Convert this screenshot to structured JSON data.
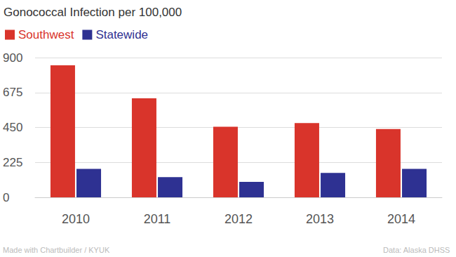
{
  "chart_data": {
    "type": "bar",
    "title": "Gonococcal Infection per 100,000",
    "categories": [
      "2010",
      "2011",
      "2012",
      "2013",
      "2014"
    ],
    "series": [
      {
        "name": "Southwest",
        "color": "#d9342b",
        "values": [
          850,
          638,
          455,
          478,
          440
        ]
      },
      {
        "name": "Statewide",
        "color": "#2e3192",
        "values": [
          183,
          130,
          100,
          157,
          183
        ]
      }
    ],
    "ylim": [
      0,
      900
    ],
    "yticks": [
      0,
      225,
      450,
      675,
      900
    ],
    "grid": true,
    "legend": "top-left",
    "annotations": [
      "Made with Chartbuilder / KYUK",
      "Data: Alaska DHSS"
    ]
  }
}
